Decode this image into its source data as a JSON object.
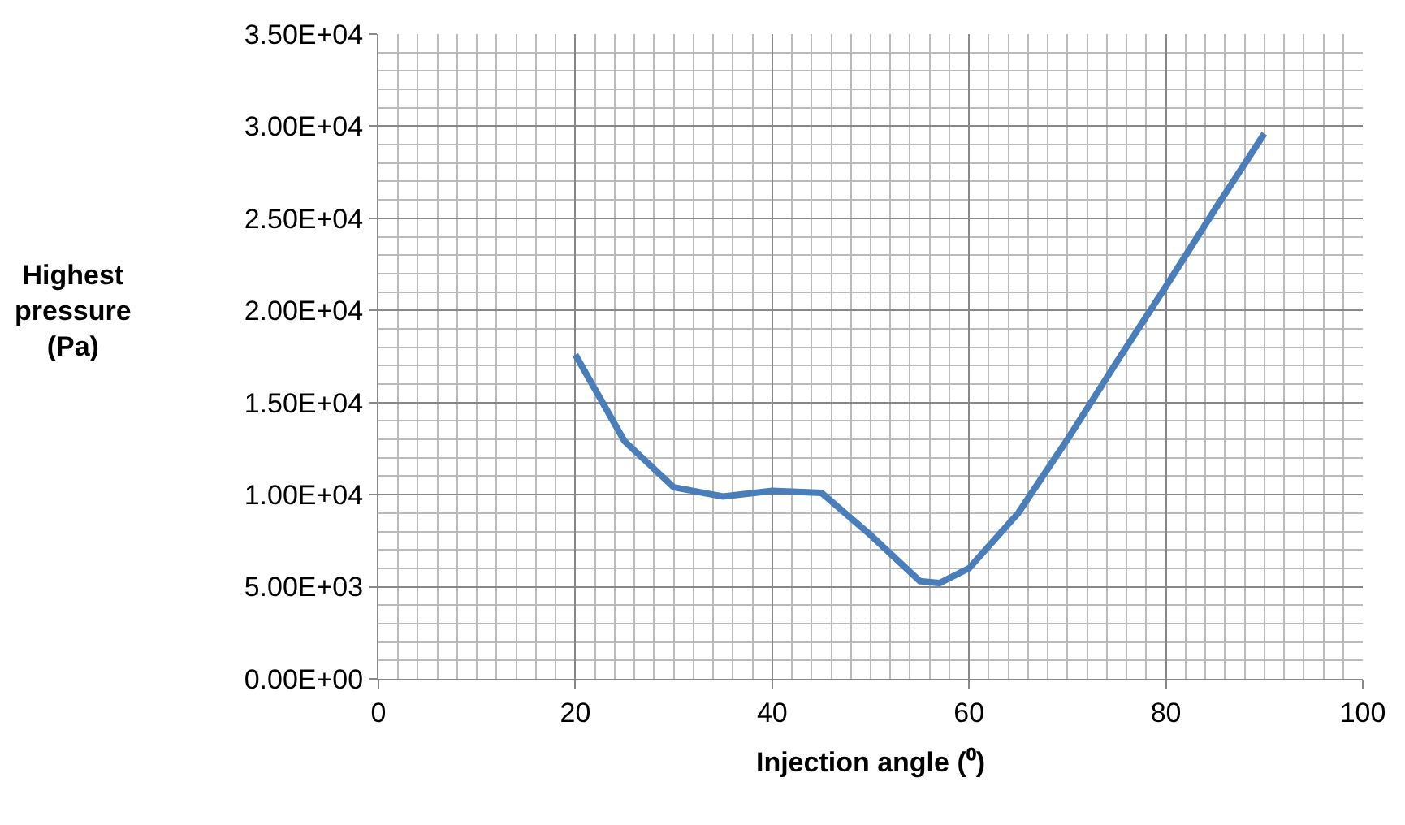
{
  "chart_data": {
    "type": "line",
    "xlabel": "Injection angle (⁰)",
    "ylabel": "Highest pressure (Pa)",
    "x": [
      20,
      25,
      30,
      35,
      40,
      45,
      50,
      55,
      57,
      60,
      65,
      70,
      75,
      80,
      85,
      90
    ],
    "series": [
      {
        "color": "#4a7ebb",
        "values": [
          17600,
          12900,
          10400,
          9900,
          10200,
          10100,
          7800,
          5300,
          5200,
          6000,
          9000,
          13000,
          17200,
          21300,
          25500,
          29600
        ]
      }
    ],
    "xlim": [
      0,
      100
    ],
    "xticks": [
      0,
      20,
      40,
      60,
      80,
      100
    ],
    "ylim": [
      0,
      35000
    ],
    "yticks": [
      {
        "value": 0,
        "label": "0.00E+00"
      },
      {
        "value": 5000,
        "label": "5.00E+03"
      },
      {
        "value": 10000,
        "label": "1.00E+04"
      },
      {
        "value": 15000,
        "label": "1.50E+04"
      },
      {
        "value": 20000,
        "label": "2.00E+04"
      },
      {
        "value": 25000,
        "label": "2.50E+04"
      },
      {
        "value": 30000,
        "label": "3.00E+04"
      },
      {
        "value": 35000,
        "label": "3.50E+04"
      }
    ],
    "grid": true,
    "marker": "none",
    "line_style": "solid"
  }
}
